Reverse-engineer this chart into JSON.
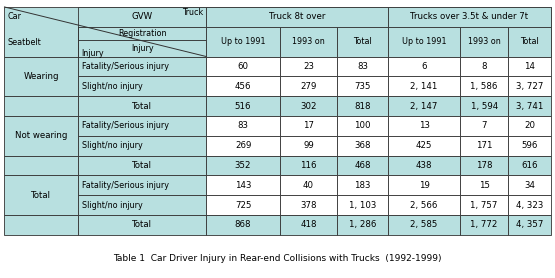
{
  "title": "Table 1  Car Driver Injury in Rear-end Collisions with Trucks  (1992-1999)",
  "bg_color": "#b8e0e0",
  "white_bg": "#ffffff",
  "figsize": [
    5.55,
    2.78
  ],
  "dpi": 100,
  "row_groups": [
    {
      "group_label": "Wearing",
      "rows": [
        {
          "label": "Fatality/Serious injury",
          "vals": [
            "60",
            "23",
            "83",
            "6",
            "8",
            "14"
          ]
        },
        {
          "label": "Slight/no injury",
          "vals": [
            "456",
            "279",
            "735",
            "2, 141",
            "1, 586",
            "3, 727"
          ]
        }
      ],
      "total_row": {
        "label": "Total",
        "vals": [
          "516",
          "302",
          "818",
          "2, 147",
          "1, 594",
          "3, 741"
        ]
      }
    },
    {
      "group_label": "Not wearing",
      "rows": [
        {
          "label": "Fatality/Serious injury",
          "vals": [
            "83",
            "17",
            "100",
            "13",
            "7",
            "20"
          ]
        },
        {
          "label": "Slight/no injury",
          "vals": [
            "269",
            "99",
            "368",
            "425",
            "171",
            "596"
          ]
        }
      ],
      "total_row": {
        "label": "Total",
        "vals": [
          "352",
          "116",
          "468",
          "438",
          "178",
          "616"
        ]
      }
    },
    {
      "group_label": "Total",
      "rows": [
        {
          "label": "Fatality/Serious injury",
          "vals": [
            "143",
            "40",
            "183",
            "19",
            "15",
            "34"
          ]
        },
        {
          "label": "Slight/no injury",
          "vals": [
            "725",
            "378",
            "1, 103",
            "2, 566",
            "1, 757",
            "4, 323"
          ]
        }
      ],
      "total_row": {
        "label": "Total",
        "vals": [
          "868",
          "418",
          "1, 286",
          "2, 585",
          "1, 772",
          "4, 357"
        ]
      }
    }
  ]
}
